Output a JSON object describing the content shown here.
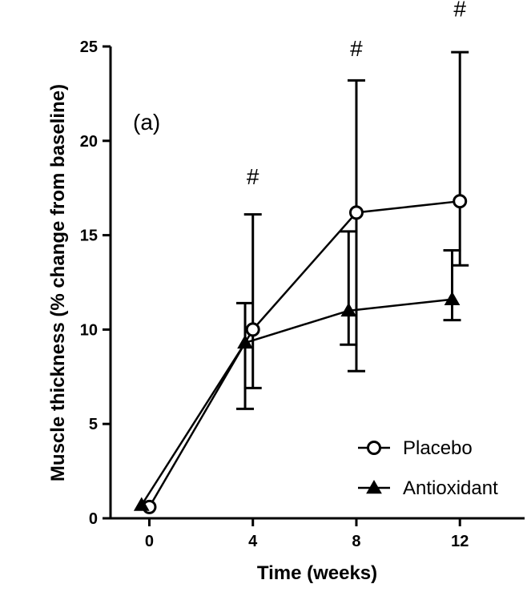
{
  "chart_data": {
    "type": "line",
    "title": "",
    "panel_label": "(a)",
    "xlabel": "Time (weeks)",
    "ylabel": "Muscle thickness (% change from baseline)",
    "x_ticks": [
      0,
      4,
      8,
      12
    ],
    "y_ticks": [
      0,
      5,
      10,
      15,
      20,
      25
    ],
    "xlim": [
      -1.5,
      14.5
    ],
    "ylim": [
      0,
      25
    ],
    "grid": false,
    "legend_position": "bottom-right",
    "series": [
      {
        "name": "Placebo",
        "marker": "open-circle",
        "x": [
          0,
          4,
          8,
          12
        ],
        "y": [
          0.6,
          10.0,
          16.2,
          16.8
        ],
        "err_upper": [
          0.6,
          16.1,
          23.2,
          24.7
        ],
        "err_lower": [
          0.6,
          6.9,
          7.8,
          13.4
        ]
      },
      {
        "name": "Antioxidant",
        "marker": "filled-triangle",
        "x": [
          -0.3,
          3.7,
          7.7,
          11.7
        ],
        "y": [
          0.7,
          9.3,
          11.0,
          11.6
        ],
        "err_upper": [
          0.7,
          11.4,
          15.2,
          14.2
        ],
        "err_lower": [
          0.7,
          5.8,
          9.2,
          10.5
        ]
      }
    ],
    "annotations": [
      {
        "text": "#",
        "x": 4,
        "y": 17.7
      },
      {
        "text": "#",
        "x": 8,
        "y": 24.5
      },
      {
        "text": "#",
        "x": 12,
        "y": 26.6
      }
    ]
  }
}
